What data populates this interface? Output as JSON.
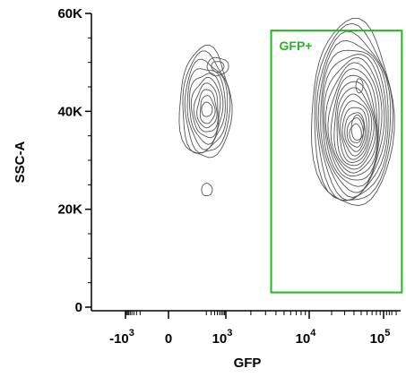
{
  "chart_data": {
    "type": "contour",
    "xlabel": "GFP",
    "ylabel": "SSC-A",
    "x_scale": "biexponential",
    "y_scale": "linear",
    "ylim": [
      0,
      60000
    ],
    "y_ticks": [
      {
        "value": 0,
        "label": "0"
      },
      {
        "value": 20000,
        "label": "20K"
      },
      {
        "value": 40000,
        "label": "40K"
      },
      {
        "value": 60000,
        "label": "60K"
      }
    ],
    "x_ticks": [
      {
        "value": -1000,
        "base": "-10",
        "exp": "3"
      },
      {
        "value": 0,
        "base": "0",
        "exp": ""
      },
      {
        "value": 1000,
        "base": "10",
        "exp": "3"
      },
      {
        "value": 10000,
        "base": "10",
        "exp": "4"
      },
      {
        "value": 100000,
        "base": "10",
        "exp": "5"
      }
    ],
    "gates": [
      {
        "name": "GFP+",
        "x_range": [
          3500,
          180000
        ],
        "y_range": [
          3000,
          56500
        ],
        "color": "#22b822"
      }
    ],
    "populations": [
      {
        "center_gfp": 180,
        "center_ssc": 40000,
        "shape": "elongated-vertical",
        "extent_ssc": [
          22000,
          52000
        ]
      },
      {
        "center_gfp": 50000,
        "center_ssc": 37000,
        "shape": "dense-oval",
        "extent_ssc": [
          19000,
          56000
        ]
      }
    ],
    "grid": false,
    "legend": "none"
  }
}
